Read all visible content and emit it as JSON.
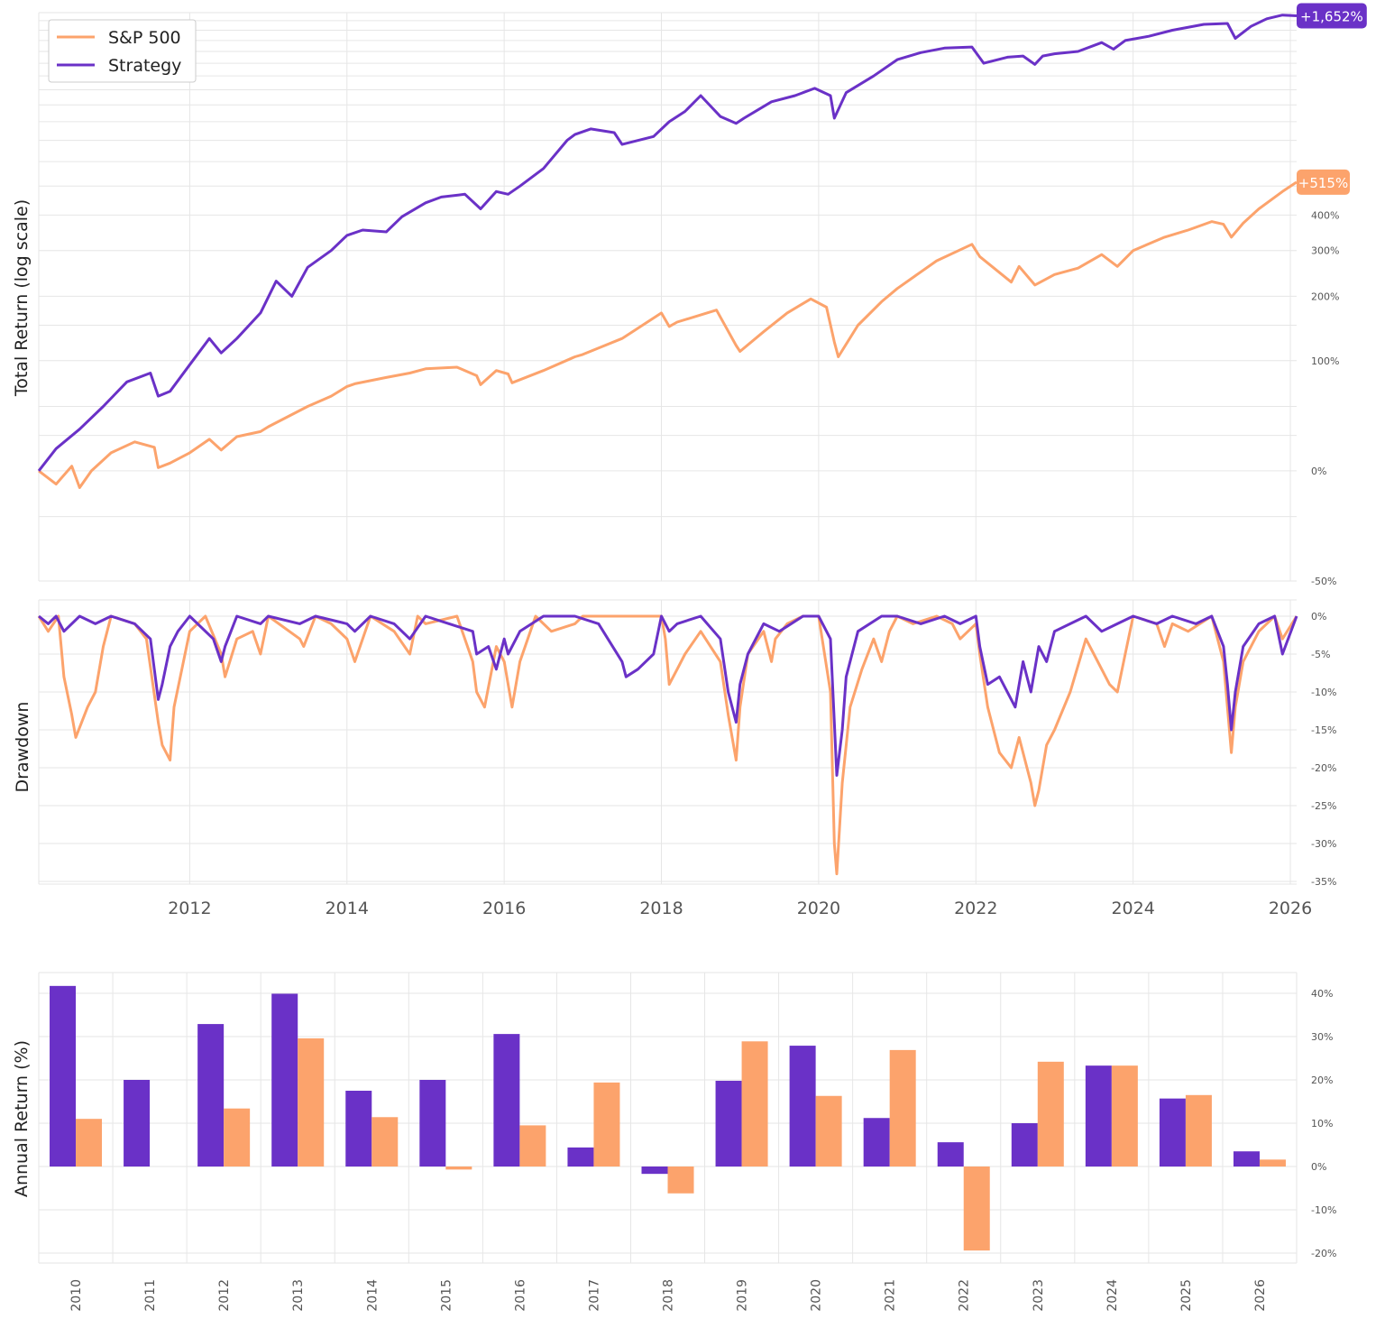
{
  "colors": {
    "sp500": "#fca36c",
    "strategy": "#6a31c7",
    "grid": "#e6e6e6"
  },
  "legend": {
    "items": [
      {
        "label": "S&P 500",
        "color": "#fca36c"
      },
      {
        "label": "Strategy",
        "color": "#6a31c7"
      }
    ],
    "placement": "top-left"
  },
  "chart_data": [
    {
      "type": "line",
      "ylabel": "Total Return (log scale)",
      "yscale": "log",
      "yticks": [
        "-50%",
        "0%",
        "100%",
        "200%",
        "300%",
        "400%"
      ],
      "ytick_values": [
        -50,
        0,
        100,
        200,
        300,
        400
      ],
      "xlim": [
        2010.08,
        2026.08
      ],
      "x_ticks": [
        "2012",
        "2014",
        "2016",
        "2018",
        "2020",
        "2022",
        "2024",
        "2026"
      ],
      "series": [
        {
          "name": "S&P 500",
          "end_label": "+515%",
          "x": [
            2010.08,
            2010.3,
            2010.5,
            2010.6,
            2010.75,
            2011.0,
            2011.3,
            2011.55,
            2011.6,
            2011.75,
            2012.0,
            2012.25,
            2012.4,
            2012.6,
            2012.9,
            2013.0,
            2013.5,
            2013.8,
            2014.0,
            2014.1,
            2014.5,
            2014.8,
            2015.0,
            2015.4,
            2015.65,
            2015.7,
            2015.9,
            2016.05,
            2016.1,
            2016.5,
            2016.9,
            2017.0,
            2017.5,
            2018.0,
            2018.1,
            2018.2,
            2018.7,
            2018.95,
            2019.0,
            2019.3,
            2019.6,
            2019.9,
            2020.1,
            2020.2,
            2020.25,
            2020.5,
            2020.8,
            2021.0,
            2021.5,
            2021.95,
            2022.05,
            2022.45,
            2022.55,
            2022.75,
            2022.8,
            2023.0,
            2023.3,
            2023.6,
            2023.8,
            2024.0,
            2024.4,
            2024.7,
            2025.0,
            2025.15,
            2025.25,
            2025.4,
            2025.6,
            2025.9,
            2026.08
          ],
          "y": [
            0,
            -8,
            3,
            -10,
            0,
            12,
            20,
            16,
            2,
            5,
            12,
            22,
            14,
            24,
            28,
            32,
            50,
            60,
            70,
            73,
            80,
            85,
            90,
            92,
            82,
            72,
            88,
            84,
            74,
            88,
            105,
            108,
            130,
            170,
            148,
            155,
            175,
            120,
            112,
            140,
            170,
            195,
            180,
            125,
            105,
            150,
            190,
            215,
            275,
            316,
            285,
            228,
            262,
            222,
            226,
            244,
            258,
            290,
            262,
            300,
            335,
            355,
            380,
            372,
            335,
            375,
            420,
            480,
            515
          ]
        },
        {
          "name": "Strategy",
          "end_label": "+1,652%",
          "x": [
            2010.08,
            2010.3,
            2010.6,
            2010.9,
            2011.2,
            2011.5,
            2011.6,
            2011.75,
            2012.0,
            2012.25,
            2012.4,
            2012.6,
            2012.9,
            2013.1,
            2013.3,
            2013.5,
            2013.8,
            2014.0,
            2014.2,
            2014.5,
            2014.7,
            2015.0,
            2015.2,
            2015.5,
            2015.7,
            2015.9,
            2016.05,
            2016.2,
            2016.5,
            2016.8,
            2016.9,
            2017.1,
            2017.4,
            2017.5,
            2017.9,
            2018.1,
            2018.3,
            2018.5,
            2018.75,
            2018.95,
            2019.05,
            2019.4,
            2019.7,
            2019.95,
            2020.15,
            2020.2,
            2020.35,
            2020.7,
            2021.0,
            2021.3,
            2021.6,
            2021.95,
            2022.1,
            2022.4,
            2022.6,
            2022.75,
            2022.85,
            2023.0,
            2023.3,
            2023.6,
            2023.75,
            2023.9,
            2024.2,
            2024.5,
            2024.9,
            2025.2,
            2025.3,
            2025.5,
            2025.7,
            2025.9,
            2026.08
          ],
          "y": [
            0,
            15,
            30,
            50,
            75,
            85,
            60,
            65,
            95,
            130,
            110,
            130,
            170,
            230,
            200,
            260,
            300,
            340,
            355,
            350,
            395,
            440,
            460,
            470,
            420,
            480,
            470,
            500,
            570,
            700,
            730,
            760,
            740,
            680,
            720,
            800,
            860,
            960,
            830,
            790,
            820,
            920,
            960,
            1010,
            960,
            820,
            980,
            1100,
            1230,
            1290,
            1330,
            1340,
            1200,
            1250,
            1260,
            1190,
            1260,
            1280,
            1300,
            1380,
            1320,
            1400,
            1440,
            1500,
            1560,
            1570,
            1420,
            1540,
            1620,
            1660,
            1652
          ]
        }
      ]
    },
    {
      "type": "line",
      "ylabel": "Drawdown",
      "yticks": [
        "0%",
        "-5%",
        "-10%",
        "-15%",
        "-20%",
        "-25%",
        "-30%",
        "-35%"
      ],
      "ytick_values": [
        0,
        -5,
        -10,
        -15,
        -20,
        -25,
        -30,
        -35
      ],
      "xlim": [
        2010.08,
        2026.08
      ],
      "x_ticks": [
        "2012",
        "2014",
        "2016",
        "2018",
        "2020",
        "2022",
        "2024",
        "2026"
      ],
      "series": [
        {
          "name": "S&P 500",
          "x": [
            2010.08,
            2010.2,
            2010.33,
            2010.4,
            2010.5,
            2010.55,
            2010.7,
            2010.8,
            2010.9,
            2011.0,
            2011.3,
            2011.45,
            2011.6,
            2011.65,
            2011.75,
            2011.8,
            2012.0,
            2012.2,
            2012.4,
            2012.45,
            2012.6,
            2012.8,
            2012.9,
            2013.0,
            2013.4,
            2013.45,
            2013.6,
            2013.8,
            2014.0,
            2014.1,
            2014.3,
            2014.6,
            2014.8,
            2014.9,
            2015.0,
            2015.4,
            2015.6,
            2015.65,
            2015.75,
            2015.9,
            2016.0,
            2016.1,
            2016.2,
            2016.4,
            2016.6,
            2016.9,
            2017.0,
            2017.5,
            2018.0,
            2018.05,
            2018.1,
            2018.2,
            2018.3,
            2018.5,
            2018.75,
            2018.85,
            2018.95,
            2019.0,
            2019.1,
            2019.3,
            2019.4,
            2019.45,
            2019.6,
            2019.8,
            2020.0,
            2020.15,
            2020.2,
            2020.23,
            2020.3,
            2020.4,
            2020.55,
            2020.7,
            2020.8,
            2020.9,
            2021.0,
            2021.2,
            2021.5,
            2021.7,
            2021.8,
            2022.0,
            2022.05,
            2022.15,
            2022.3,
            2022.45,
            2022.55,
            2022.7,
            2022.75,
            2022.8,
            2022.9,
            2023.0,
            2023.2,
            2023.4,
            2023.5,
            2023.7,
            2023.8,
            2023.9,
            2024.0,
            2024.3,
            2024.4,
            2024.5,
            2024.7,
            2025.0,
            2025.15,
            2025.25,
            2025.3,
            2025.4,
            2025.6,
            2025.8,
            2025.9,
            2026.08
          ],
          "y": [
            0,
            -2,
            0,
            -8,
            -13,
            -16,
            -12,
            -10,
            -4,
            0,
            -1,
            -3,
            -14,
            -17,
            -19,
            -12,
            -2,
            0,
            -5,
            -8,
            -3,
            -2,
            -5,
            0,
            -3,
            -4,
            0,
            -1,
            -3,
            -6,
            0,
            -2,
            -5,
            0,
            -1,
            0,
            -6,
            -10,
            -12,
            -4,
            -6,
            -12,
            -6,
            0,
            -2,
            -1,
            0,
            0,
            0,
            -3,
            -9,
            -7,
            -5,
            -2,
            -6,
            -13,
            -19,
            -12,
            -5,
            -2,
            -6,
            -3,
            -1,
            0,
            0,
            -10,
            -30,
            -34,
            -22,
            -12,
            -7,
            -3,
            -6,
            -2,
            0,
            -1,
            0,
            -1,
            -3,
            -1,
            -5,
            -12,
            -18,
            -20,
            -16,
            -22,
            -25,
            -23,
            -17,
            -15,
            -10,
            -3,
            -5,
            -9,
            -10,
            -5,
            0,
            -1,
            -4,
            -1,
            -2,
            0,
            -6,
            -18,
            -12,
            -6,
            -2,
            0,
            -3,
            0
          ]
        },
        {
          "name": "Strategy",
          "x": [
            2010.08,
            2010.2,
            2010.3,
            2010.4,
            2010.6,
            2010.8,
            2011.0,
            2011.3,
            2011.5,
            2011.6,
            2011.65,
            2011.75,
            2011.85,
            2012.0,
            2012.3,
            2012.4,
            2012.45,
            2012.6,
            2012.9,
            2013.0,
            2013.4,
            2013.6,
            2014.0,
            2014.1,
            2014.3,
            2014.6,
            2014.8,
            2015.0,
            2015.3,
            2015.6,
            2015.65,
            2015.8,
            2015.9,
            2016.0,
            2016.05,
            2016.2,
            2016.5,
            2016.9,
            2017.2,
            2017.5,
            2017.55,
            2017.7,
            2017.9,
            2018.0,
            2018.05,
            2018.1,
            2018.2,
            2018.5,
            2018.75,
            2018.85,
            2018.95,
            2019.0,
            2019.1,
            2019.3,
            2019.5,
            2019.8,
            2020.0,
            2020.15,
            2020.2,
            2020.23,
            2020.3,
            2020.35,
            2020.5,
            2020.8,
            2021.0,
            2021.3,
            2021.6,
            2021.8,
            2022.0,
            2022.05,
            2022.15,
            2022.3,
            2022.5,
            2022.6,
            2022.7,
            2022.8,
            2022.9,
            2023.0,
            2023.2,
            2023.4,
            2023.6,
            2023.8,
            2024.0,
            2024.3,
            2024.5,
            2024.8,
            2025.0,
            2025.15,
            2025.2,
            2025.25,
            2025.3,
            2025.4,
            2025.6,
            2025.8,
            2025.9,
            2026.08
          ],
          "y": [
            0,
            -1,
            0,
            -2,
            0,
            -1,
            0,
            -1,
            -3,
            -11,
            -9,
            -4,
            -2,
            0,
            -3,
            -6,
            -4,
            0,
            -1,
            0,
            -1,
            0,
            -1,
            -2,
            0,
            -1,
            -3,
            0,
            -1,
            -2,
            -5,
            -4,
            -7,
            -3,
            -5,
            -2,
            0,
            0,
            -1,
            -6,
            -8,
            -7,
            -5,
            0,
            -1,
            -2,
            -1,
            0,
            -3,
            -10,
            -14,
            -9,
            -5,
            -1,
            -2,
            0,
            0,
            -3,
            -14,
            -21,
            -15,
            -8,
            -2,
            0,
            0,
            -1,
            0,
            -1,
            0,
            -4,
            -9,
            -8,
            -12,
            -6,
            -10,
            -4,
            -6,
            -2,
            -1,
            0,
            -2,
            -1,
            0,
            -1,
            0,
            -1,
            0,
            -4,
            -9,
            -15,
            -10,
            -4,
            -1,
            0,
            -5,
            0
          ]
        }
      ]
    },
    {
      "type": "bar",
      "ylabel": "Annual Return (%)",
      "yticks": [
        "40%",
        "30%",
        "20%",
        "10%",
        "0%",
        "-10%",
        "-20%"
      ],
      "ytick_values": [
        40,
        30,
        20,
        10,
        0,
        -10,
        -20
      ],
      "categories": [
        "2010",
        "2011",
        "2012",
        "2013",
        "2014",
        "2015",
        "2016",
        "2017",
        "2018",
        "2019",
        "2020",
        "2021",
        "2022",
        "2023",
        "2024",
        "2025",
        "2026"
      ],
      "series": [
        {
          "name": "Strategy",
          "values": [
            41.7,
            20.0,
            32.9,
            39.9,
            17.5,
            20.0,
            30.6,
            4.4,
            -1.7,
            19.8,
            27.9,
            11.2,
            5.6,
            10.0,
            23.3,
            15.7,
            3.5
          ]
        },
        {
          "name": "S&P 500",
          "values": [
            11.0,
            0,
            13.4,
            29.6,
            11.4,
            -0.7,
            9.5,
            19.4,
            -6.2,
            28.9,
            16.3,
            26.9,
            -19.4,
            24.2,
            23.3,
            16.5,
            1.6
          ]
        }
      ]
    }
  ]
}
